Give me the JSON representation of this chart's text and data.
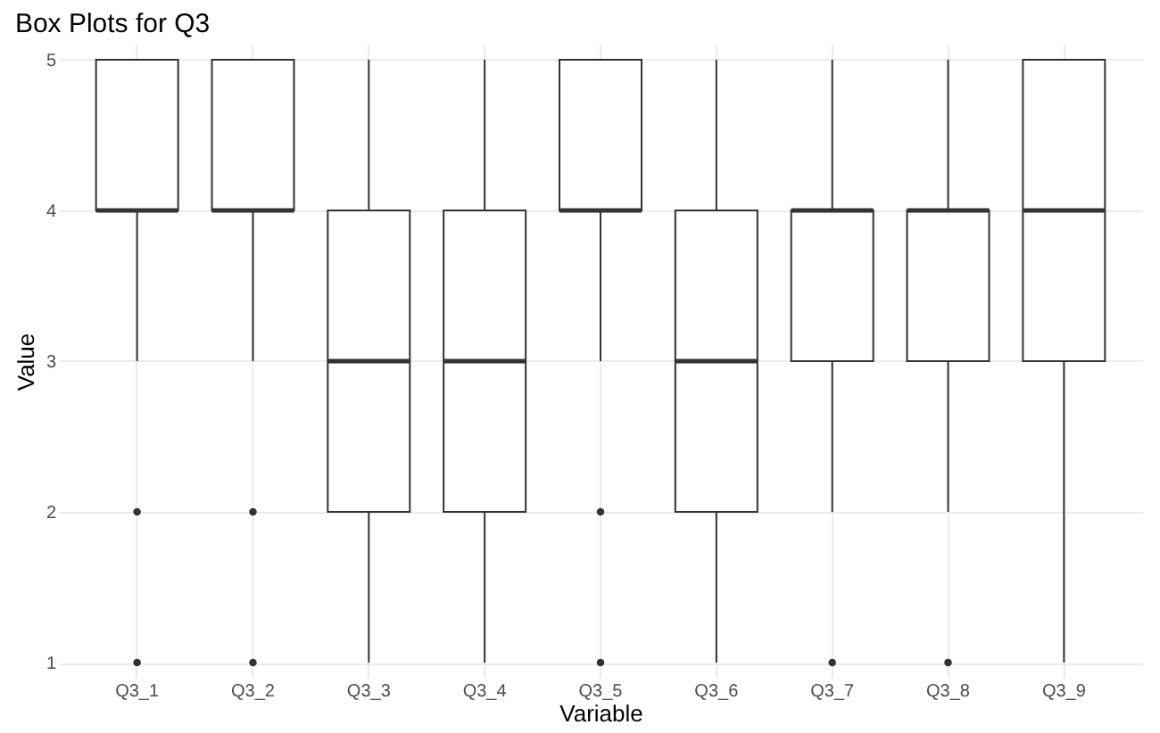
{
  "chart_data": {
    "type": "box",
    "title": "Box Plots for Q3",
    "xlabel": "Variable",
    "ylabel": "Value",
    "categories": [
      "Q3_1",
      "Q3_2",
      "Q3_3",
      "Q3_4",
      "Q3_5",
      "Q3_6",
      "Q3_7",
      "Q3_8",
      "Q3_9"
    ],
    "boxes": [
      {
        "low": 3,
        "q1": 4,
        "median": 4,
        "q3": 5,
        "high": 5,
        "outliers": [
          2,
          1
        ]
      },
      {
        "low": 3,
        "q1": 4,
        "median": 4,
        "q3": 5,
        "high": 5,
        "outliers": [
          2,
          1
        ]
      },
      {
        "low": 1,
        "q1": 2,
        "median": 3,
        "q3": 4,
        "high": 5
      },
      {
        "low": 1,
        "q1": 2,
        "median": 3,
        "q3": 4,
        "high": 5
      },
      {
        "low": 3,
        "q1": 4,
        "median": 4,
        "q3": 5,
        "high": 5,
        "outliers": [
          2,
          1
        ]
      },
      {
        "low": 1,
        "q1": 2,
        "median": 3,
        "q3": 4,
        "high": 5
      },
      {
        "low": 2,
        "q1": 3,
        "median": 4,
        "q3": 4,
        "high": 5,
        "outliers": [
          1
        ]
      },
      {
        "low": 2,
        "q1": 3,
        "median": 4,
        "q3": 4,
        "high": 5,
        "outliers": [
          1
        ]
      },
      {
        "low": 1,
        "q1": 3,
        "median": 4,
        "q3": 5,
        "high": 5
      }
    ],
    "color": "#333333",
    "ylim": [
      0.9,
      5.1
    ],
    "yticks": [
      1,
      2,
      3,
      4,
      5
    ],
    "grid": true
  }
}
